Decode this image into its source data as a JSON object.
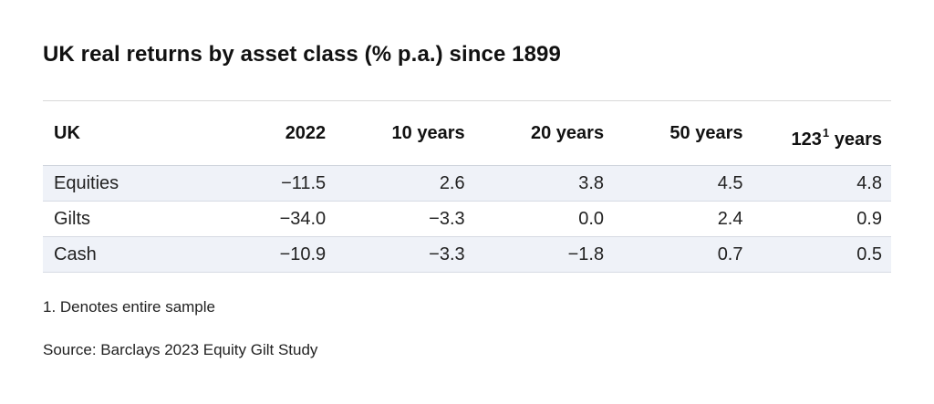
{
  "title": "UK real returns by asset class (% p.a.) since 1899",
  "table": {
    "headers": {
      "label": "UK",
      "y2022": "2022",
      "y10": "10 years",
      "y20": "20 years",
      "y50": "50 years",
      "full_number": "123",
      "full_footnote_marker": "1",
      "full_suffix": " years"
    },
    "rows": [
      {
        "name": "Equities",
        "y2022": "−11.5",
        "y10": "2.6",
        "y20": "3.8",
        "y50": "4.5",
        "full": "4.8"
      },
      {
        "name": "Gilts",
        "y2022": "−34.0",
        "y10": "−3.3",
        "y20": "0.0",
        "y50": "2.4",
        "full": "0.9"
      },
      {
        "name": "Cash",
        "y2022": "−10.9",
        "y10": "−3.3",
        "y20": "−1.8",
        "y50": "0.7",
        "full": "0.5"
      }
    ]
  },
  "footnote": "1. Denotes entire sample",
  "source": "Source: Barclays 2023 Equity Gilt Study"
}
